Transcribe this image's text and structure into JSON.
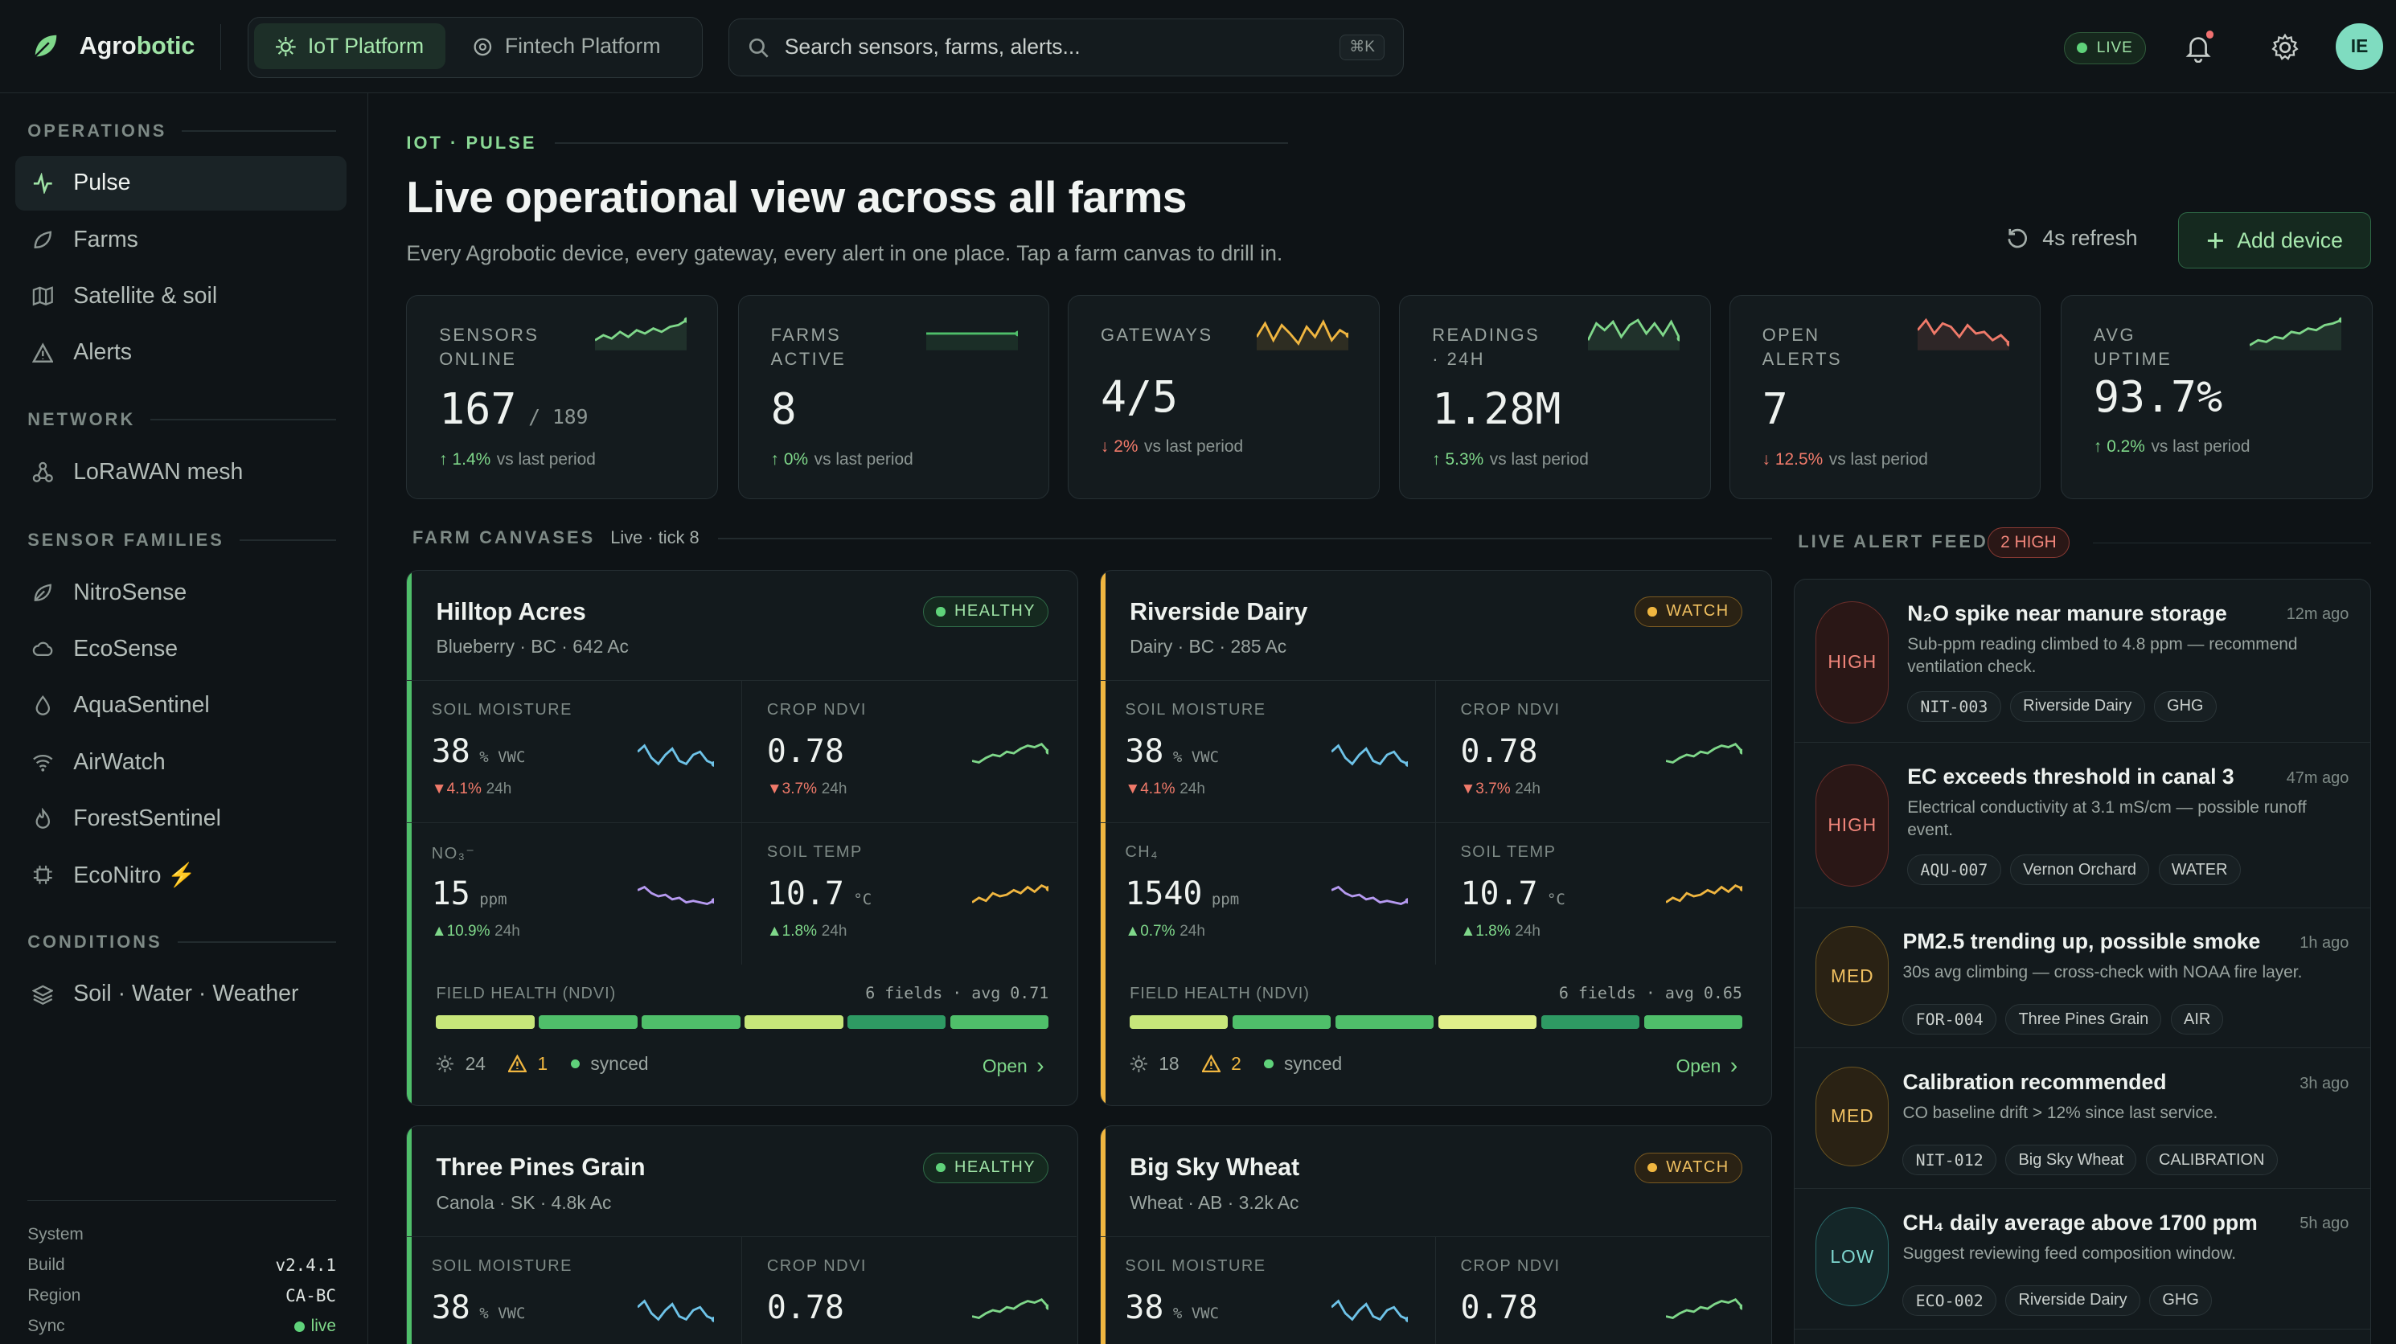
{
  "brand": {
    "name_a": "Agro",
    "name_b": "botic"
  },
  "platform": {
    "tabs": [
      {
        "label": "IoT Platform"
      },
      {
        "label": "Fintech Platform"
      }
    ]
  },
  "search": {
    "placeholder": "Search sensors, farms, alerts...",
    "shortcut": "⌘K"
  },
  "status": {
    "live": "LIVE"
  },
  "user": {
    "initials": "IE"
  },
  "sidebar": {
    "sections": {
      "operations": "OPERATIONS",
      "network": "NETWORK",
      "sensor_families": "SENSOR FAMILIES",
      "conditions": "CONDITIONS"
    },
    "items": [
      {
        "label": "Pulse",
        "icon": "pulse-icon"
      },
      {
        "label": "Farms",
        "icon": "farm-icon"
      },
      {
        "label": "Satellite & soil",
        "icon": "map-icon"
      },
      {
        "label": "Alerts",
        "icon": "alert-icon"
      },
      {
        "label": "LoRaWAN mesh",
        "icon": "mesh-icon"
      },
      {
        "label": "NitroSense",
        "icon": "leaf-icon"
      },
      {
        "label": "EcoSense",
        "icon": "cloud-icon"
      },
      {
        "label": "AquaSentinel",
        "icon": "drop-icon"
      },
      {
        "label": "AirWatch",
        "icon": "wifi-icon"
      },
      {
        "label": "ForestSentinel",
        "icon": "flame-icon"
      },
      {
        "label": "EcoNitro ⚡",
        "icon": "chip-icon"
      },
      {
        "label": "Soil · Water · Weather",
        "icon": "layers-icon"
      }
    ],
    "system": {
      "title": "System",
      "build_label": "Build",
      "build": "v2.4.1",
      "region_label": "Region",
      "region": "CA-BC",
      "sync_label": "Sync",
      "sync": "live"
    }
  },
  "page": {
    "crumb": "IOT · PULSE",
    "title": "Live operational view across all farms",
    "subtitle": "Every Agrobotic device, every gateway, every alert in one place. Tap a farm canvas to drill in.",
    "refresh": "4s refresh",
    "add_device": "Add device"
  },
  "kpis": [
    {
      "label": "SENSORS ONLINE",
      "value": "167",
      "suffix": "/ 189",
      "delta": "1.4%",
      "trend": "up",
      "note": "vs last period"
    },
    {
      "label": "FARMS ACTIVE",
      "value": "8",
      "suffix": "",
      "delta": "0%",
      "trend": "up",
      "note": "vs last period"
    },
    {
      "label": "GATEWAYS",
      "value": "4/5",
      "suffix": "",
      "delta": "2%",
      "trend": "down",
      "note": "vs last period"
    },
    {
      "label": "READINGS · 24H",
      "value": "1.28M",
      "suffix": "",
      "delta": "5.3%",
      "trend": "up",
      "note": "vs last period"
    },
    {
      "label": "OPEN ALERTS",
      "value": "7",
      "suffix": "",
      "delta": "12.5%",
      "trend": "down",
      "note": "vs last period"
    },
    {
      "label": "AVG UPTIME",
      "value": "93.7%",
      "suffix": "",
      "delta": "0.2%",
      "trend": "up",
      "note": "vs last period"
    }
  ],
  "farm_canvases": {
    "title": "FARM CANVASES",
    "tick": "Live · tick 8"
  },
  "farms": [
    {
      "name": "Hilltop Acres",
      "meta": "Blueberry · BC · 642 Ac",
      "status": "HEALTHY",
      "color": "#4fbf6a",
      "metrics": [
        {
          "label": "SOIL MOISTURE",
          "value": "38",
          "unit": "% VWC",
          "delta": "4.1%",
          "trend": "down",
          "period": "24h",
          "color": "#6ec3e8"
        },
        {
          "label": "CROP NDVI",
          "value": "0.78",
          "unit": "",
          "delta": "3.7%",
          "trend": "down",
          "period": "24h",
          "color": "#7fd88a"
        },
        {
          "label": "NO₃⁻",
          "value": "15",
          "unit": "ppm",
          "delta": "10.9%",
          "trend": "up",
          "period": "24h",
          "color": "#b69af0"
        },
        {
          "label": "SOIL TEMP",
          "value": "10.7",
          "unit": "°C",
          "delta": "1.8%",
          "trend": "up",
          "period": "24h",
          "color": "#f0b640"
        }
      ],
      "health_label": "FIELD HEALTH (NDVI)",
      "health_info": "6 fields · avg 0.71",
      "devices": "24",
      "alerts": "1",
      "sync": "synced",
      "open": "Open"
    },
    {
      "name": "Riverside Dairy",
      "meta": "Dairy · BC · 285 Ac",
      "status": "WATCH",
      "color": "#f0b640",
      "metrics": [
        {
          "label": "SOIL MOISTURE",
          "value": "38",
          "unit": "% VWC",
          "delta": "4.1%",
          "trend": "down",
          "period": "24h",
          "color": "#6ec3e8"
        },
        {
          "label": "CROP NDVI",
          "value": "0.78",
          "unit": "",
          "delta": "3.7%",
          "trend": "down",
          "period": "24h",
          "color": "#7fd88a"
        },
        {
          "label": "CH₄",
          "value": "1540",
          "unit": "ppm",
          "delta": "0.7%",
          "trend": "up",
          "period": "24h",
          "color": "#b69af0"
        },
        {
          "label": "SOIL TEMP",
          "value": "10.7",
          "unit": "°C",
          "delta": "1.8%",
          "trend": "up",
          "period": "24h",
          "color": "#f0b640"
        }
      ],
      "health_label": "FIELD HEALTH (NDVI)",
      "health_info": "6 fields · avg 0.65",
      "devices": "18",
      "alerts": "2",
      "sync": "synced",
      "open": "Open"
    },
    {
      "name": "Three Pines Grain",
      "meta": "Canola · SK · 4.8k Ac",
      "status": "HEALTHY",
      "color": "#4fbf6a",
      "metrics": [
        {
          "label": "SOIL MOISTURE",
          "value": "38",
          "unit": "% VWC",
          "color": "#6ec3e8"
        },
        {
          "label": "CROP NDVI",
          "value": "0.78",
          "unit": "",
          "color": "#7fd88a"
        }
      ]
    },
    {
      "name": "Big Sky Wheat",
      "meta": "Wheat · AB · 3.2k Ac",
      "status": "WATCH",
      "color": "#f0b640",
      "metrics": [
        {
          "label": "SOIL MOISTURE",
          "value": "38",
          "unit": "% VWC",
          "color": "#6ec3e8"
        },
        {
          "label": "CROP NDVI",
          "value": "0.78",
          "unit": "",
          "color": "#7fd88a"
        }
      ]
    }
  ],
  "alert_feed": {
    "title": "LIVE ALERT FEED",
    "badge": "2 HIGH",
    "items": [
      {
        "severity": "HIGH",
        "title": "N₂O spike near manure storage",
        "time": "12m ago",
        "desc": "Sub-ppm reading climbed to 4.8 ppm — recommend ventilation check.",
        "tags": [
          "NIT-003",
          "Riverside Dairy",
          "GHG"
        ]
      },
      {
        "severity": "HIGH",
        "title": "EC exceeds threshold in canal 3",
        "time": "47m ago",
        "desc": "Electrical conductivity at 3.1 mS/cm — possible runoff event.",
        "tags": [
          "AQU-007",
          "Vernon Orchard",
          "WATER"
        ]
      },
      {
        "severity": "MED",
        "title": "PM2.5 trending up, possible smoke",
        "time": "1h ago",
        "desc": "30s avg climbing — cross-check with NOAA fire layer.",
        "tags": [
          "FOR-004",
          "Three Pines Grain",
          "AIR"
        ]
      },
      {
        "severity": "MED",
        "title": "Calibration recommended",
        "time": "3h ago",
        "desc": "CO baseline drift > 12% since last service.",
        "tags": [
          "NIT-012",
          "Big Sky Wheat",
          "CALIBRATION"
        ]
      },
      {
        "severity": "LOW",
        "title": "CH₄ daily average above 1700 ppm",
        "time": "5h ago",
        "desc": "Suggest reviewing feed composition window.",
        "tags": [
          "ECO-002",
          "Riverside Dairy",
          "GHG"
        ]
      }
    ]
  }
}
